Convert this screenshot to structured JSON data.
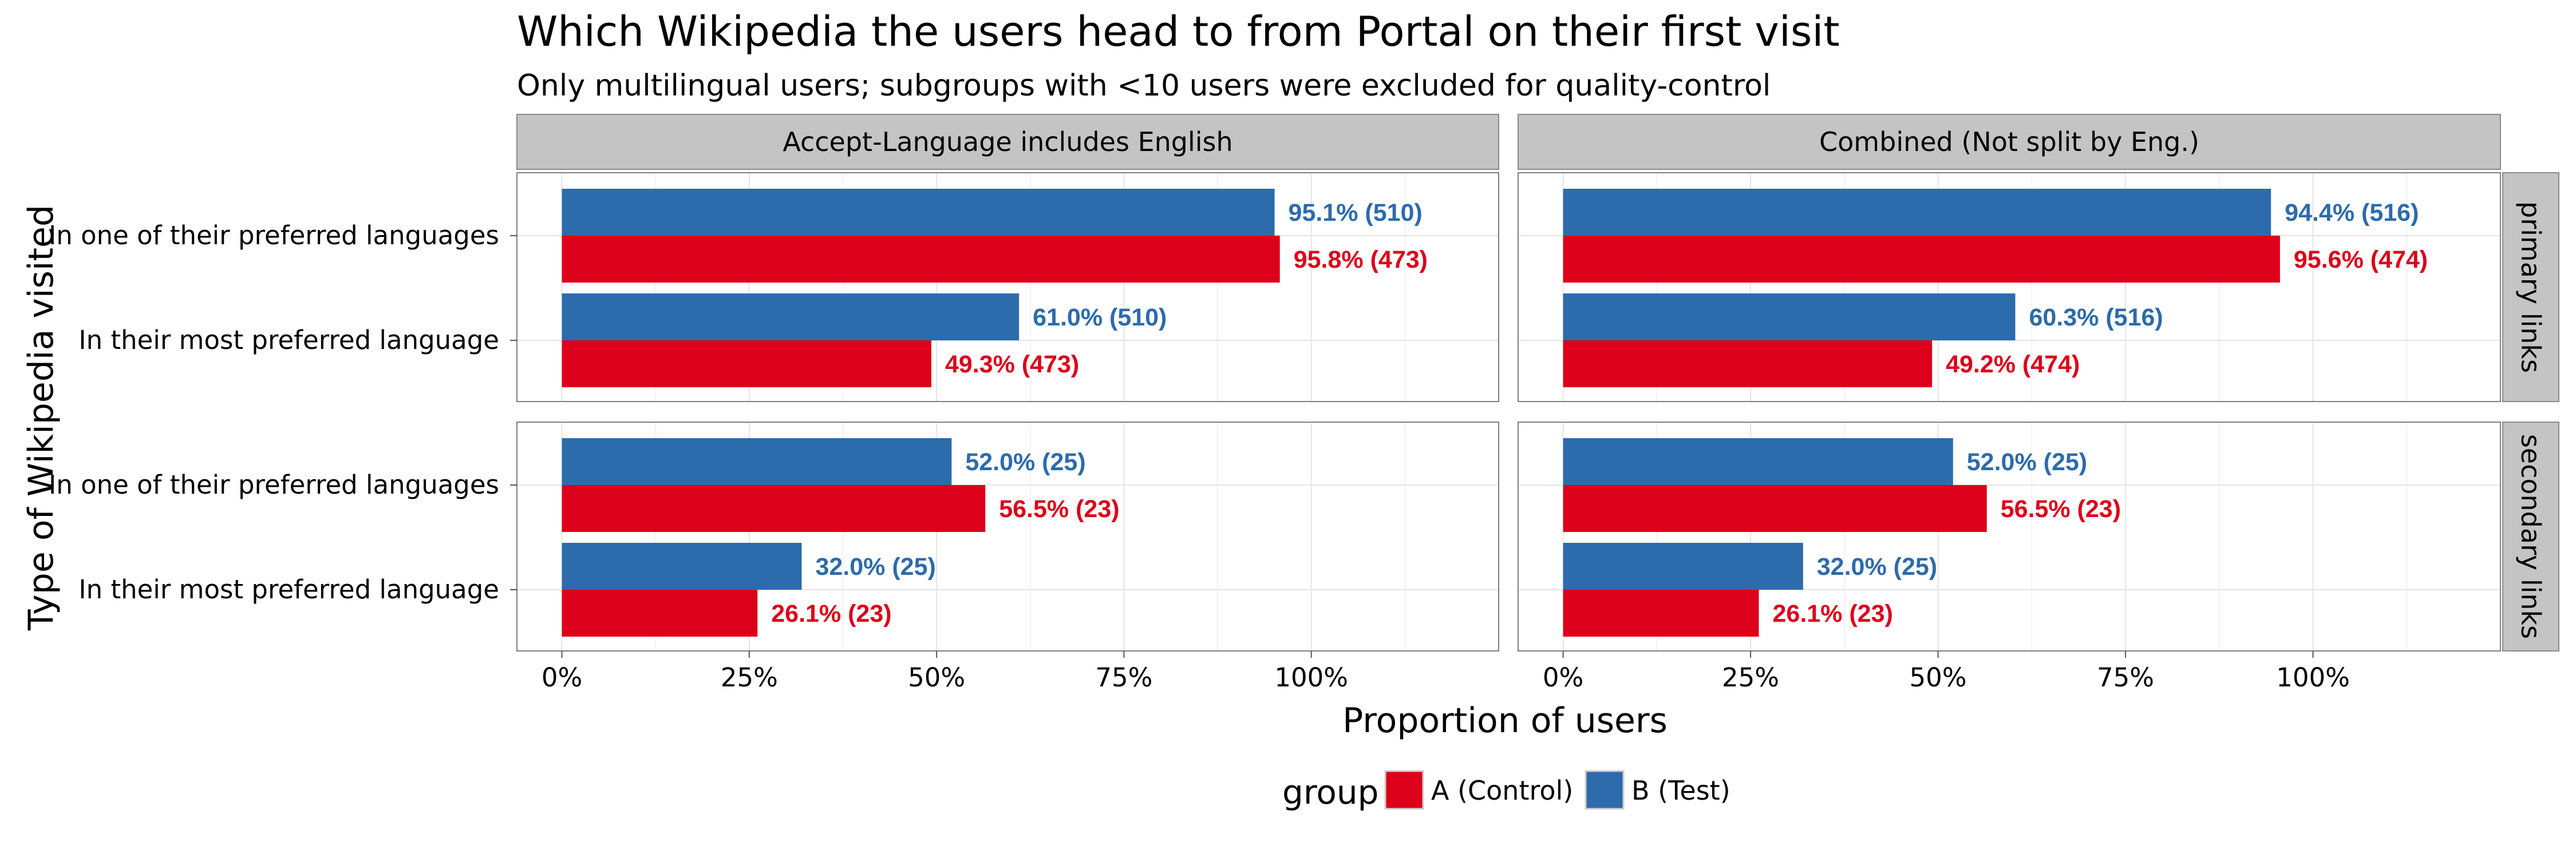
{
  "chart_data": {
    "type": "bar",
    "orientation": "horizontal",
    "title": "Which Wikipedia the users head to from Portal on their first visit",
    "subtitle": "Only multilingual users; subgroups with <10 users were excluded for quality-control",
    "xlabel": "Proportion of users",
    "ylabel": "Type of Wikipedia visited",
    "xlim": [
      -0.06,
      1.25
    ],
    "xticks": [
      0,
      0.25,
      0.5,
      0.75,
      1.0
    ],
    "xtick_labels": [
      "0%",
      "25%",
      "50%",
      "75%",
      "100%"
    ],
    "categories": [
      "In one of their preferred languages",
      "In their most preferred language"
    ],
    "columns": [
      "Accept-Language includes English",
      "Combined (Not split by Eng.)"
    ],
    "rows": [
      "primary links",
      "secondary links"
    ],
    "grid": true,
    "legend": {
      "title": "group",
      "position": "bottom",
      "entries": [
        {
          "name": "A (Control)",
          "color": "#DC001A"
        },
        {
          "name": "B (Test)",
          "color": "#2C6BAC"
        }
      ]
    },
    "panels": [
      {
        "column": "Accept-Language includes English",
        "row": "primary links",
        "series": [
          {
            "name": "B (Test)",
            "values": [
              0.951,
              0.61
            ],
            "labels": [
              "95.1% (510)",
              "61.0% (510)"
            ]
          },
          {
            "name": "A (Control)",
            "values": [
              0.958,
              0.493
            ],
            "labels": [
              "95.8% (473)",
              "49.3% (473)"
            ]
          }
        ]
      },
      {
        "column": "Combined (Not split by Eng.)",
        "row": "primary links",
        "series": [
          {
            "name": "B (Test)",
            "values": [
              0.944,
              0.603
            ],
            "labels": [
              "94.4% (516)",
              "60.3% (516)"
            ]
          },
          {
            "name": "A (Control)",
            "values": [
              0.956,
              0.492
            ],
            "labels": [
              "95.6% (474)",
              "49.2% (474)"
            ]
          }
        ]
      },
      {
        "column": "Accept-Language includes English",
        "row": "secondary links",
        "series": [
          {
            "name": "B (Test)",
            "values": [
              0.52,
              0.32
            ],
            "labels": [
              "52.0% (25)",
              "32.0% (25)"
            ]
          },
          {
            "name": "A (Control)",
            "values": [
              0.565,
              0.261
            ],
            "labels": [
              "56.5% (23)",
              "26.1% (23)"
            ]
          }
        ]
      },
      {
        "column": "Combined (Not split by Eng.)",
        "row": "secondary links",
        "series": [
          {
            "name": "B (Test)",
            "values": [
              0.52,
              0.32
            ],
            "labels": [
              "52.0% (25)",
              "32.0% (25)"
            ]
          },
          {
            "name": "A (Control)",
            "values": [
              0.565,
              0.261
            ],
            "labels": [
              "56.5% (23)",
              "26.1% (23)"
            ]
          }
        ]
      }
    ]
  }
}
